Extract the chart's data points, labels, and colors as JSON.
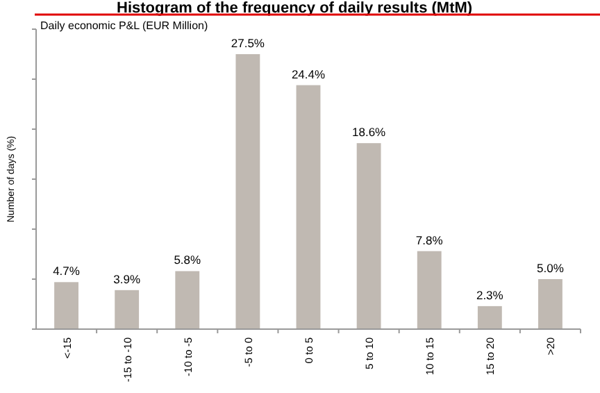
{
  "chart_data": {
    "type": "bar",
    "title": "Histogram of the frequency of daily results (MtM)",
    "subtitle": "Daily economic P&L (EUR Million)",
    "ylabel": "Number of days (%)",
    "categories": [
      "<-15",
      "-15 to -10",
      "-10 to -5",
      "-5 to 0",
      "0 to 5",
      "5 to 10",
      "10 to 15",
      "15 to 20",
      ">20"
    ],
    "values": [
      4.7,
      3.9,
      5.8,
      27.5,
      24.4,
      18.6,
      7.8,
      2.3,
      5.0
    ],
    "value_labels": [
      "4.7%",
      "3.9%",
      "5.8%",
      "27.5%",
      "24.4%",
      "18.6%",
      "7.8%",
      "2.3%",
      "5.0%"
    ],
    "color": "#c0b9b2",
    "ylim": [
      0,
      30
    ],
    "yticks": [
      {
        "value": 0,
        "label": null
      },
      {
        "value": 5,
        "label": null
      },
      {
        "value": 10,
        "label": null
      },
      {
        "value": 15,
        "label": null
      },
      {
        "value": 20,
        "label": null
      },
      {
        "value": 25,
        "label": null
      },
      {
        "value": 30,
        "label": null
      }
    ],
    "tick_labels": "x"
  }
}
